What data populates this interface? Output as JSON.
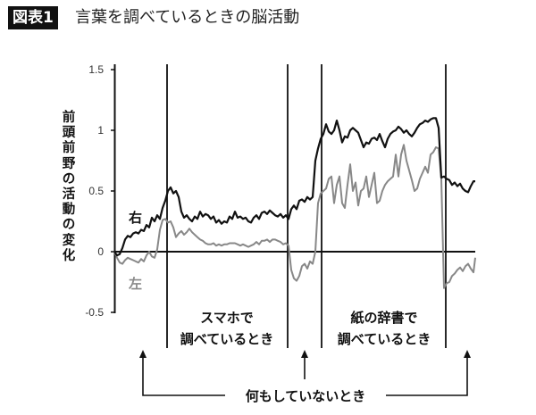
{
  "header": {
    "badge": "図表1",
    "title": "言葉を調べているときの脳活動"
  },
  "chart_data": {
    "type": "line",
    "title": "言葉を調べているときの脳活動",
    "xlabel": "",
    "ylabel": "前頭前野の活動の変化",
    "ylim": [
      -0.5,
      1.5
    ],
    "yticks": [
      "1.5",
      "1",
      "0.5",
      "0",
      "-0.5"
    ],
    "grid": false,
    "legend": {
      "position": "inline",
      "entries": [
        "右",
        "左"
      ]
    },
    "x": [
      0,
      3,
      6,
      9,
      12,
      15,
      18,
      21,
      24,
      27,
      30,
      33,
      36,
      39,
      42,
      45,
      48,
      51,
      54,
      57,
      60,
      63,
      66,
      69,
      72,
      75,
      78,
      81,
      84,
      87,
      90,
      93,
      96,
      99,
      102,
      105,
      108,
      111,
      114,
      117,
      120,
      123,
      126,
      129,
      132,
      135,
      138,
      141,
      144,
      147,
      150,
      153,
      156,
      159,
      162,
      165,
      168,
      171,
      174,
      177,
      180,
      183,
      186,
      189,
      192,
      195,
      198,
      201,
      204,
      207,
      210,
      213,
      216,
      219,
      222,
      225,
      228,
      231,
      234,
      237,
      240,
      243,
      246,
      249,
      252,
      255,
      258,
      261,
      264,
      267,
      270,
      273,
      276,
      279,
      282,
      285,
      288,
      291,
      294,
      297,
      300,
      303,
      306,
      309,
      312,
      315,
      318,
      321,
      324,
      327,
      330,
      333,
      336,
      339,
      342,
      345,
      348,
      351,
      354,
      357,
      360,
      363,
      366,
      369,
      372,
      375,
      378,
      381,
      384,
      387,
      390,
      393,
      396,
      399,
      402,
      404
    ],
    "series": [
      {
        "name": "右",
        "color": "#111111",
        "values": [
          0.0,
          -0.03,
          -0.02,
          0.03,
          0.1,
          0.13,
          0.12,
          0.15,
          0.16,
          0.15,
          0.18,
          0.17,
          0.22,
          0.2,
          0.28,
          0.25,
          0.3,
          0.27,
          0.36,
          0.42,
          0.5,
          0.53,
          0.48,
          0.5,
          0.45,
          0.33,
          0.28,
          0.3,
          0.27,
          0.25,
          0.29,
          0.27,
          0.33,
          0.29,
          0.31,
          0.3,
          0.27,
          0.29,
          0.24,
          0.26,
          0.23,
          0.25,
          0.24,
          0.29,
          0.27,
          0.33,
          0.28,
          0.29,
          0.27,
          0.28,
          0.25,
          0.24,
          0.28,
          0.3,
          0.27,
          0.32,
          0.33,
          0.31,
          0.34,
          0.32,
          0.3,
          0.29,
          0.31,
          0.28,
          0.3,
          0.27,
          0.35,
          0.38,
          0.35,
          0.42,
          0.43,
          0.41,
          0.45,
          0.43,
          0.45,
          0.75,
          0.85,
          0.93,
          0.97,
          1.05,
          0.99,
          0.97,
          1.0,
          1.08,
          1.0,
          0.9,
          0.95,
          0.94,
          1.0,
          1.02,
          1.0,
          0.98,
          0.92,
          0.86,
          0.9,
          0.89,
          0.93,
          0.94,
          0.92,
          0.97,
          0.91,
          0.86,
          0.93,
          0.97,
          0.99,
          1.0,
          1.03,
          1.01,
          0.98,
          1.0,
          0.97,
          0.95,
          0.98,
          1.02,
          1.05,
          1.06,
          1.08,
          1.07,
          1.09,
          1.1,
          1.1,
          1.02,
          0.61,
          0.62,
          0.6,
          0.59,
          0.55,
          0.57,
          0.54,
          0.56,
          0.52,
          0.5,
          0.49,
          0.54,
          0.58,
          0.58
        ]
      },
      {
        "name": "左",
        "color": "#888888",
        "values": [
          0.0,
          -0.05,
          -0.09,
          -0.1,
          -0.07,
          -0.05,
          -0.06,
          -0.07,
          -0.08,
          -0.09,
          -0.06,
          -0.08,
          -0.03,
          0.0,
          -0.04,
          -0.05,
          0.02,
          0.18,
          0.26,
          0.27,
          0.24,
          0.25,
          0.2,
          0.12,
          0.15,
          0.17,
          0.14,
          0.16,
          0.19,
          0.16,
          0.14,
          0.12,
          0.1,
          0.09,
          0.07,
          0.06,
          0.06,
          0.07,
          0.05,
          0.06,
          0.05,
          0.06,
          0.06,
          0.07,
          0.07,
          0.07,
          0.06,
          0.05,
          0.06,
          0.05,
          0.04,
          0.05,
          0.06,
          0.08,
          0.06,
          0.09,
          0.09,
          0.1,
          0.08,
          0.1,
          0.1,
          0.09,
          0.08,
          0.06,
          0.07,
          0.05,
          -0.15,
          -0.22,
          -0.24,
          -0.2,
          -0.12,
          -0.1,
          -0.14,
          -0.08,
          -0.1,
          0.0,
          0.4,
          0.48,
          0.5,
          0.52,
          0.6,
          0.62,
          0.4,
          0.55,
          0.62,
          0.4,
          0.36,
          0.55,
          0.72,
          0.5,
          0.57,
          0.38,
          0.5,
          0.52,
          0.62,
          0.45,
          0.55,
          0.65,
          0.4,
          0.42,
          0.5,
          0.55,
          0.58,
          0.6,
          0.62,
          0.8,
          0.62,
          0.8,
          0.88,
          0.75,
          0.67,
          0.59,
          0.5,
          0.52,
          0.6,
          0.65,
          0.7,
          0.65,
          0.8,
          0.82,
          0.86,
          0.85,
          0.6,
          -0.3,
          -0.26,
          -0.25,
          -0.2,
          -0.18,
          -0.15,
          -0.13,
          -0.16,
          -0.12,
          -0.1,
          -0.14,
          -0.17,
          -0.05
        ]
      }
    ],
    "phase_dividers_x": [
      59,
      194,
      232,
      371
    ],
    "annotations": [
      {
        "text": "スマホで 調べているとき",
        "span": [
          59,
          194
        ]
      },
      {
        "text": "紙の辞書で 調べているとき",
        "span": [
          232,
          371
        ]
      },
      {
        "text": "何もしていないとき",
        "arrows_at_x": [
          32,
          213,
          395
        ]
      }
    ]
  },
  "axis": {
    "ylabel_chars": [
      "前",
      "頭",
      "前",
      "野",
      "の",
      "活",
      "動",
      "の",
      "変",
      "化"
    ]
  },
  "legend": {
    "right": "右",
    "left": "左"
  },
  "segments": {
    "phone": {
      "line1": "スマホで",
      "line2": "調べているとき"
    },
    "paper": {
      "line1": "紙の辞書で",
      "line2": "調べているとき"
    },
    "idle": "何もしていないとき"
  }
}
